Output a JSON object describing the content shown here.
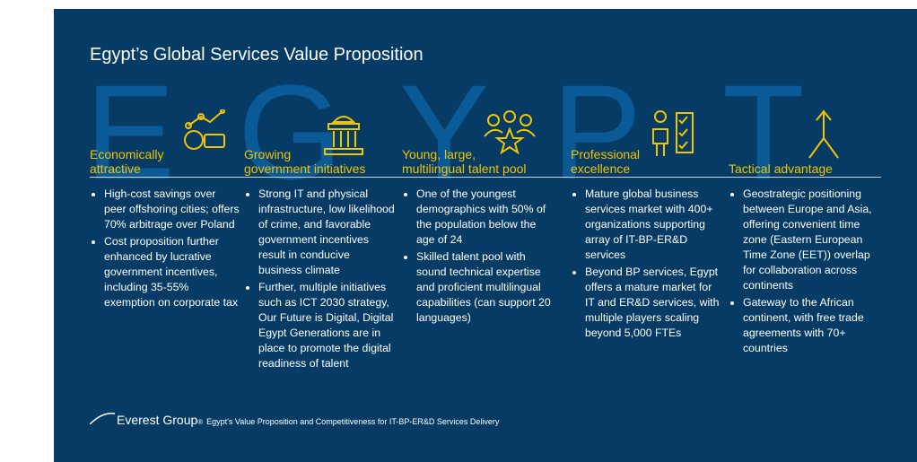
{
  "title": "Egypt’s Global Services Value Proposition",
  "watermark": [
    "E",
    "G",
    "Y",
    "P",
    "T"
  ],
  "columns": [
    {
      "heading": [
        "Economically",
        "attractive"
      ],
      "bullets": [
        "High-cost savings over peer offshoring cities; offers 70% arbitrage over Poland",
        "Cost proposition further enhanced by lucrative government incentives, including 35-55% exemption on corporate tax"
      ]
    },
    {
      "heading": [
        "Growing",
        "government initiatives"
      ],
      "bullets": [
        "Strong IT and physical infrastructure, low likelihood of crime, and favorable government incentives result in conducive business climate",
        "Further, multiple initiatives such as ICT 2030 strategy, Our Future is Digital, Digital Egypt Generations are in place to promote the digital readiness of talent"
      ]
    },
    {
      "heading": [
        "Young, large,",
        "multilingual talent pool"
      ],
      "bullets": [
        "One of the youngest demographics with 50% of the population below the age of 24",
        "Skilled talent pool with sound technical expertise and proficient multilingual capabilities (can support 20 languages)"
      ]
    },
    {
      "heading": [
        "Professional",
        "excellence"
      ],
      "bullets": [
        "Mature global business services market with 400+ organizations supporting array of IT-BP-ER&D services",
        "Beyond BP services, Egypt offers a mature market for IT and ER&D services, with multiple players scaling beyond 5,000 FTEs"
      ]
    },
    {
      "heading": [
        "Tactical advantage"
      ],
      "bullets": [
        "Geostrategic positioning between Europe and Asia, offering convenient time zone (Eastern European Time Zone (EET)) overlap for collaboration across continents",
        "Gateway to the African continent, with free trade agreements with 70+ countries"
      ]
    }
  ],
  "footer": {
    "brand": "Everest Group",
    "mark": "®",
    "text": "Egypt's Value Proposition and Competitiveness for IT-BP-ER&D Services Delivery"
  }
}
